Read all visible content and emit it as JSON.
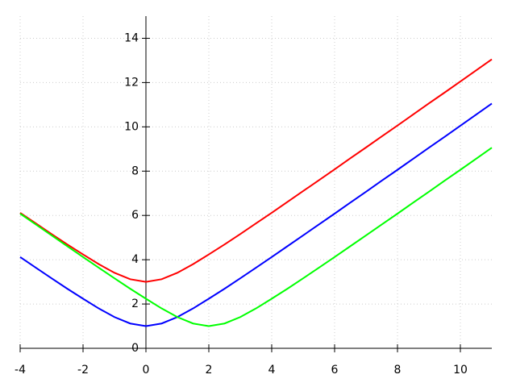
{
  "chart_data": {
    "type": "line",
    "x": [
      -4,
      -3.5,
      -3,
      -2.5,
      -2,
      -1.5,
      -1,
      -0.5,
      0,
      0.5,
      1,
      1.5,
      2,
      2.5,
      3,
      3.5,
      4,
      4.5,
      5,
      5.5,
      6,
      6.5,
      7,
      7.5,
      8,
      8.5,
      9,
      9.5,
      10,
      10.5,
      11
    ],
    "series": [
      {
        "color": "#ff0000",
        "values": [
          6.12,
          5.64,
          5.16,
          4.69,
          4.24,
          3.8,
          3.41,
          3.12,
          3,
          3.12,
          3.41,
          3.8,
          4.24,
          4.69,
          5.16,
          5.64,
          6.12,
          6.61,
          7.1,
          7.59,
          8.08,
          8.58,
          9.07,
          9.57,
          10.06,
          10.56,
          11.06,
          11.55,
          12.05,
          12.55,
          13.05
        ]
      },
      {
        "color": "#0000ff",
        "values": [
          4.12,
          3.64,
          3.16,
          2.69,
          2.24,
          1.8,
          1.41,
          1.12,
          1,
          1.12,
          1.41,
          1.8,
          2.24,
          2.69,
          3.16,
          3.64,
          4.12,
          4.61,
          5.1,
          5.59,
          6.08,
          6.58,
          7.07,
          7.57,
          8.06,
          8.56,
          9.06,
          9.55,
          10.05,
          10.55,
          11.05
        ]
      },
      {
        "color": "#00ff00",
        "values": [
          6.08,
          5.59,
          5.1,
          4.61,
          4.12,
          3.64,
          3.16,
          2.69,
          2.24,
          1.8,
          1.41,
          1.12,
          1,
          1.12,
          1.41,
          1.8,
          2.24,
          2.69,
          3.16,
          3.64,
          4.12,
          4.61,
          5.1,
          5.59,
          6.08,
          6.58,
          7.07,
          7.57,
          8.06,
          8.56,
          9.06
        ]
      }
    ],
    "xlim": [
      -4,
      11
    ],
    "ylim": [
      0,
      15
    ],
    "xticks": [
      -4,
      -2,
      0,
      2,
      4,
      6,
      8,
      10
    ],
    "yticks": [
      0,
      2,
      4,
      6,
      8,
      10,
      12,
      14
    ],
    "grid": true
  }
}
